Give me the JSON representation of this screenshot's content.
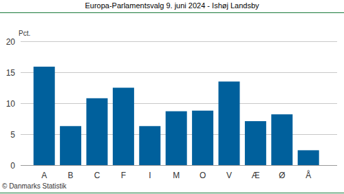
{
  "chart_data": {
    "type": "bar",
    "title": "Europa-Parlamentsvalg 9. juni 2024 - Ishøj Landsby",
    "y_label": "Pct.",
    "source": "© Danmarks Statistik",
    "categories": [
      "A",
      "B",
      "C",
      "F",
      "I",
      "M",
      "O",
      "V",
      "Æ",
      "Ø",
      "Å"
    ],
    "values": [
      15.9,
      6.3,
      10.8,
      12.5,
      6.3,
      8.7,
      8.8,
      13.5,
      7.1,
      8.2,
      2.4
    ],
    "color": "#00609c",
    "ylim": [
      0,
      20
    ],
    "yticks": [
      0,
      5,
      10,
      15,
      20
    ],
    "grid": true
  }
}
